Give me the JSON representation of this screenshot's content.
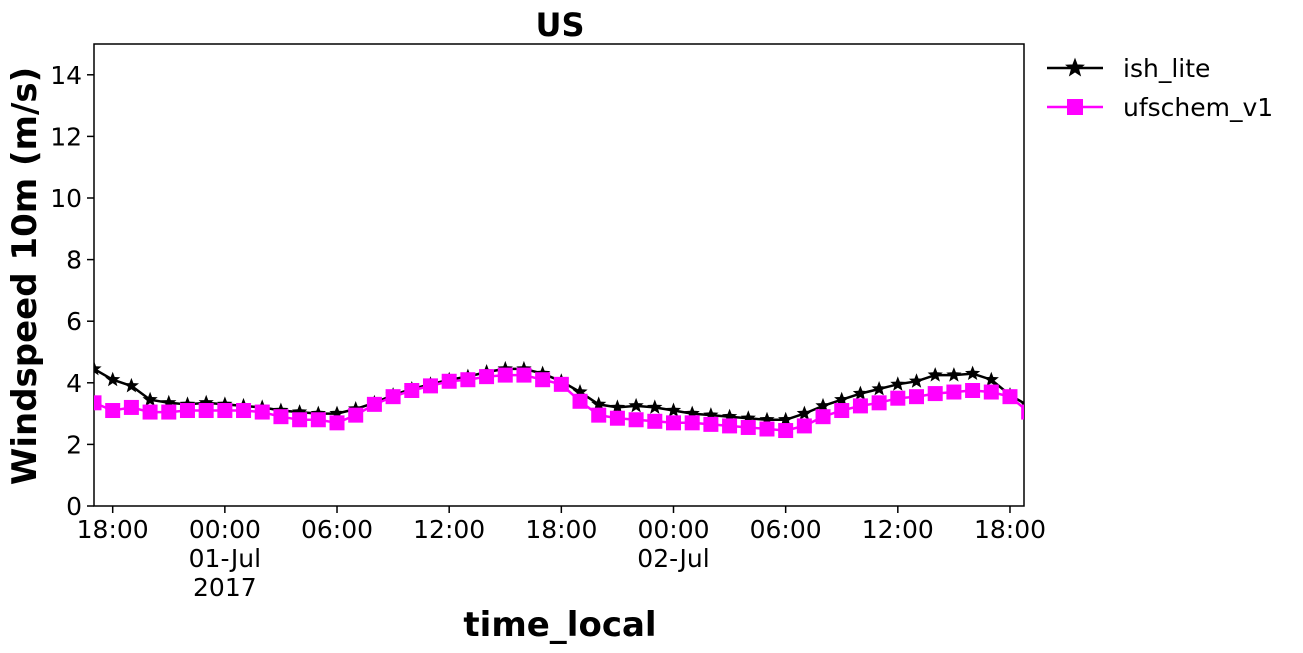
{
  "chart_data": {
    "type": "line",
    "title": "US",
    "xlabel": "time_local",
    "ylabel": "Windspeed 10m (m/s)",
    "ylim": [
      0,
      15
    ],
    "yticks": [
      0,
      2,
      4,
      6,
      8,
      10,
      12,
      14
    ],
    "xlim": [
      "2017-06-30 17:00",
      "2017-07-02 18:45"
    ],
    "x_tick_labels": [
      {
        "time": "2017-06-30 18:00",
        "lines": [
          "18:00"
        ]
      },
      {
        "time": "2017-07-01 00:00",
        "lines": [
          "00:00",
          "01-Jul",
          "2017"
        ]
      },
      {
        "time": "2017-07-01 06:00",
        "lines": [
          "06:00"
        ]
      },
      {
        "time": "2017-07-01 12:00",
        "lines": [
          "12:00"
        ]
      },
      {
        "time": "2017-07-01 18:00",
        "lines": [
          "18:00"
        ]
      },
      {
        "time": "2017-07-02 00:00",
        "lines": [
          "00:00",
          "02-Jul"
        ]
      },
      {
        "time": "2017-07-02 06:00",
        "lines": [
          "06:00"
        ]
      },
      {
        "time": "2017-07-02 12:00",
        "lines": [
          "12:00"
        ]
      },
      {
        "time": "2017-07-02 18:00",
        "lines": [
          "18:00"
        ]
      }
    ],
    "x_start": "2017-06-30 17:00",
    "x_interval": "1 hour",
    "grid": false,
    "legend": "outside-top-right",
    "series": [
      {
        "name": "ish_lite",
        "color": "#000000",
        "marker": "star",
        "values": [
          4.45,
          4.1,
          3.9,
          3.45,
          3.35,
          3.3,
          3.35,
          3.3,
          3.25,
          3.2,
          3.1,
          3.05,
          3.0,
          3.0,
          3.15,
          3.35,
          3.6,
          3.8,
          3.95,
          4.1,
          4.2,
          4.35,
          4.45,
          4.45,
          4.3,
          4.05,
          3.7,
          3.3,
          3.2,
          3.25,
          3.2,
          3.1,
          3.0,
          2.95,
          2.9,
          2.85,
          2.8,
          2.8,
          3.0,
          3.25,
          3.45,
          3.65,
          3.8,
          3.95,
          4.05,
          4.25,
          4.25,
          4.3,
          4.1,
          3.6,
          3.25
        ]
      },
      {
        "name": "ufschem_v1",
        "color": "#ff00ff",
        "marker": "square",
        "values": [
          3.35,
          3.1,
          3.2,
          3.05,
          3.05,
          3.1,
          3.1,
          3.1,
          3.1,
          3.05,
          2.9,
          2.8,
          2.8,
          2.7,
          2.95,
          3.3,
          3.55,
          3.75,
          3.9,
          4.05,
          4.1,
          4.2,
          4.25,
          4.25,
          4.1,
          3.95,
          3.4,
          2.95,
          2.85,
          2.8,
          2.75,
          2.7,
          2.7,
          2.65,
          2.6,
          2.55,
          2.5,
          2.45,
          2.6,
          2.9,
          3.1,
          3.25,
          3.35,
          3.5,
          3.55,
          3.65,
          3.7,
          3.75,
          3.7,
          3.55,
          3.05
        ]
      }
    ]
  }
}
